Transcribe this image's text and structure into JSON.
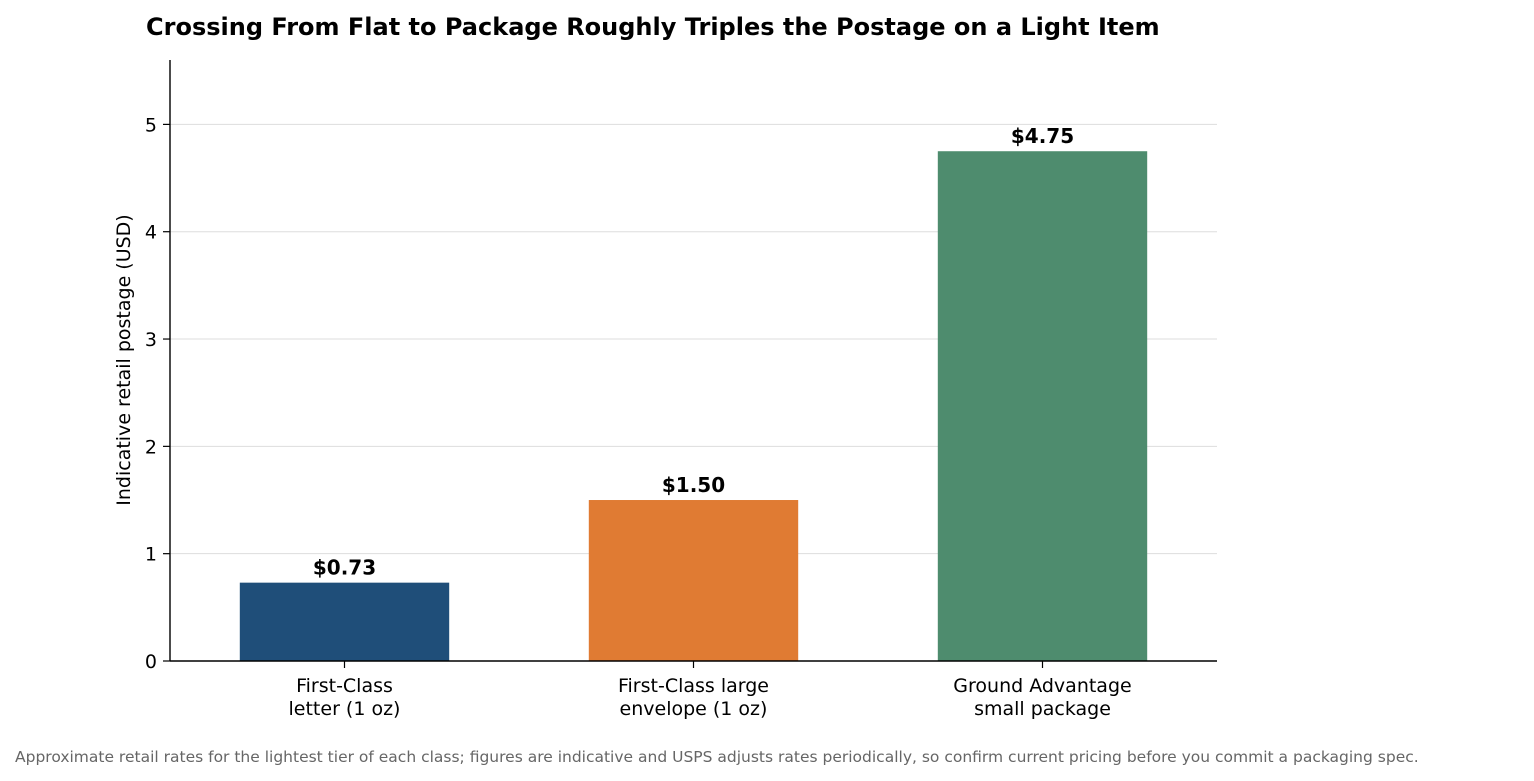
{
  "chart_data": {
    "type": "bar",
    "title": "Crossing From Flat to Package Roughly Triples the Postage on a Light Item",
    "xlabel": "",
    "ylabel": "Indicative retail postage (USD)",
    "categories": [
      [
        "First-Class",
        "letter (1 oz)"
      ],
      [
        "First-Class large",
        "envelope (1 oz)"
      ],
      [
        "Ground Advantage",
        "small package"
      ]
    ],
    "values": [
      0.73,
      1.5,
      4.75
    ],
    "value_labels": [
      "$0.73",
      "$1.50",
      "$4.75"
    ],
    "colors": [
      "#1f4e79",
      "#e07b33",
      "#4e8c6e"
    ],
    "ylim": [
      0,
      5.6
    ],
    "yticks": [
      0,
      1,
      2,
      3,
      4,
      5
    ],
    "grid": true,
    "legend": "none"
  },
  "footnote": "Approximate retail rates for the lightest tier of each class; figures are indicative and USPS adjusts rates periodically, so confirm current pricing before you commit a packaging spec."
}
